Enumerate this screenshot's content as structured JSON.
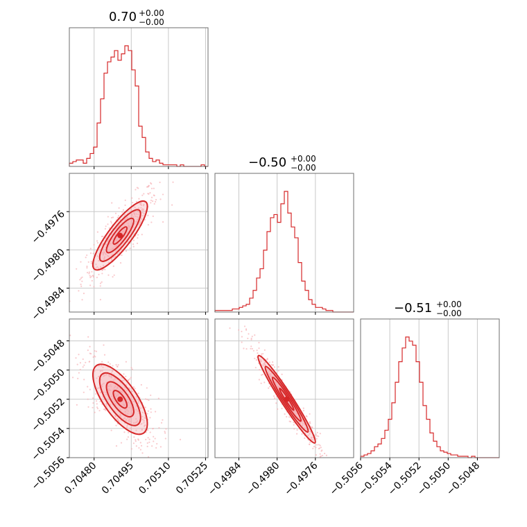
{
  "colors": {
    "series": "#d62728",
    "fill": "#f4a7ad",
    "scatter": "#f6b4b8",
    "grid": "#c8c8c8",
    "frame": "#6e6e6e"
  },
  "panel_titles": [
    {
      "main": "0.70",
      "sup": "+0.00",
      "sub": "−0.00"
    },
    {
      "main": "−0.50",
      "sup": "+0.00",
      "sub": "−0.00"
    },
    {
      "main": "−0.51",
      "sup": "+0.00",
      "sub": "−0.00"
    }
  ],
  "chart_data": {
    "type": "corner",
    "parameters": [
      {
        "range": [
          0.7047,
          0.70526
        ],
        "ticks": [
          0.7048,
          0.70495,
          0.7051,
          0.70525
        ],
        "tick_labels": [
          "0.70480",
          "0.70495",
          "0.70510",
          "0.70525"
        ]
      },
      {
        "range": [
          -0.49865,
          -0.4972
        ],
        "ticks": [
          -0.4984,
          -0.498,
          -0.4976
        ],
        "tick_labels": [
          "−0.4984",
          "−0.4980",
          "−0.4976"
        ]
      },
      {
        "range": [
          -0.5056,
          -0.50465
        ],
        "ticks": [
          -0.5056,
          -0.5054,
          -0.5052,
          -0.505,
          -0.5048
        ],
        "tick_labels": [
          "−0.5056",
          "−0.5054",
          "−0.5052",
          "−0.5050",
          "−0.5048"
        ]
      }
    ],
    "histograms": [
      {
        "param": 0,
        "counts": [
          2,
          3,
          4,
          4,
          2,
          5,
          8,
          12,
          27,
          42,
          58,
          65,
          68,
          72,
          66,
          70,
          75,
          72,
          60,
          50,
          25,
          18,
          9,
          5,
          3,
          4,
          2,
          1,
          1,
          1,
          1,
          0,
          1,
          0,
          0,
          0,
          0,
          0,
          1,
          0
        ]
      },
      {
        "param": 1,
        "counts": [
          1,
          1,
          1,
          1,
          1,
          2,
          2,
          3,
          4,
          5,
          9,
          14,
          22,
          28,
          40,
          52,
          61,
          63,
          58,
          70,
          78,
          64,
          55,
          48,
          32,
          20,
          14,
          8,
          5,
          3,
          3,
          2,
          1,
          1,
          0,
          0,
          0,
          0,
          0,
          0
        ]
      },
      {
        "param": 2,
        "counts": [
          1,
          2,
          3,
          5,
          8,
          10,
          14,
          20,
          28,
          40,
          55,
          70,
          80,
          88,
          85,
          82,
          70,
          55,
          38,
          28,
          18,
          12,
          8,
          5,
          4,
          3,
          2,
          2,
          1,
          1,
          1,
          0,
          1,
          0,
          0,
          0,
          0,
          0,
          0,
          0
        ]
      }
    ],
    "pairs": [
      {
        "x_param": 0,
        "y_param": 1,
        "center": [
          0.704905,
          -0.49785
        ],
        "sigma": [
          5.5e-05,
          0.00018
        ],
        "rho": 0.85
      },
      {
        "x_param": 0,
        "y_param": 2,
        "center": [
          0.704905,
          -0.5052
        ],
        "sigma": [
          5.5e-05,
          0.00012
        ],
        "rho": -0.7
      },
      {
        "x_param": 1,
        "y_param": 2,
        "center": [
          -0.4979,
          -0.5052
        ],
        "sigma": [
          0.00015,
          0.00015
        ],
        "rho": -0.97
      }
    ]
  }
}
